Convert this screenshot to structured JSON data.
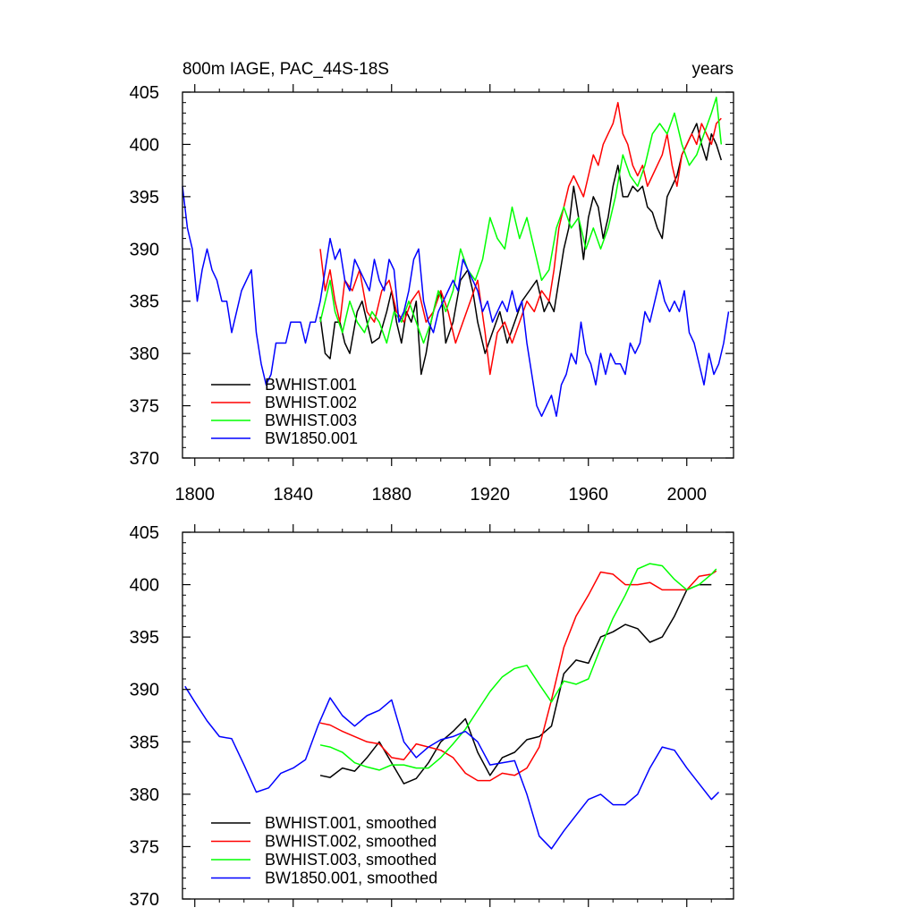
{
  "chart_data": [
    {
      "type": "line",
      "title": "800m IAGE, PAC_44S-18S",
      "units": "years",
      "xlim": [
        1795,
        2019
      ],
      "ylim": [
        370,
        405
      ],
      "xticks": [
        1800,
        1840,
        1880,
        1920,
        1960,
        2000
      ],
      "yticks": [
        370,
        375,
        380,
        385,
        390,
        395,
        400,
        405
      ],
      "x_tick_labels": [
        "1800",
        "1840",
        "1880",
        "1920",
        "1960",
        "2000"
      ],
      "y_tick_labels": [
        "370",
        "375",
        "380",
        "385",
        "390",
        "395",
        "400",
        "405"
      ],
      "legend": [
        "BWHIST.001",
        "BWHIST.002",
        "BWHIST.003",
        "BW1850.001"
      ],
      "series": [
        {
          "name": "BWHIST.001",
          "color": "#000000",
          "x": [
            1851,
            1853,
            1855,
            1857,
            1859,
            1861,
            1863,
            1866,
            1868,
            1870,
            1872,
            1875,
            1878,
            1880,
            1882,
            1884,
            1886,
            1888,
            1890,
            1892,
            1894,
            1896,
            1898,
            1900,
            1902,
            1905,
            1908,
            1911,
            1913,
            1915,
            1918,
            1921,
            1924,
            1927,
            1930,
            1933,
            1936,
            1939,
            1942,
            1944,
            1946,
            1948,
            1950,
            1952,
            1954,
            1956,
            1958,
            1960,
            1962,
            1964,
            1966,
            1968,
            1970,
            1972,
            1974,
            1976,
            1978,
            1980,
            1982,
            1984,
            1986,
            1988,
            1990,
            1992,
            1994,
            1996,
            1998,
            2000,
            2002,
            2004,
            2006,
            2008,
            2010,
            2012,
            2014
          ],
          "values": [
            383.5,
            380,
            379.5,
            383,
            383,
            381,
            380,
            384,
            385,
            383,
            381,
            381.5,
            384,
            386,
            383,
            381,
            384,
            383,
            385,
            378,
            380,
            383,
            385,
            386,
            381,
            383,
            387,
            388,
            386,
            383,
            380,
            382,
            384,
            381,
            383,
            385,
            386,
            387,
            384,
            385,
            384,
            387,
            390,
            392,
            396,
            393,
            389,
            393,
            395,
            394,
            391,
            393,
            396,
            398,
            395,
            395,
            396,
            395.5,
            396,
            394,
            393.5,
            392,
            391,
            395,
            396,
            397,
            399,
            400,
            401,
            402,
            400,
            398.5,
            401,
            400,
            398.5
          ]
        },
        {
          "name": "BWHIST.002",
          "color": "#ff0000",
          "x": [
            1851,
            1853,
            1855,
            1857,
            1859,
            1861,
            1864,
            1867,
            1870,
            1873,
            1876,
            1879,
            1882,
            1885,
            1888,
            1891,
            1894,
            1897,
            1900,
            1903,
            1906,
            1909,
            1912,
            1915,
            1918,
            1920,
            1923,
            1926,
            1929,
            1932,
            1935,
            1938,
            1941,
            1944,
            1946,
            1948,
            1950,
            1952,
            1954,
            1956,
            1958,
            1960,
            1962,
            1964,
            1966,
            1968,
            1970,
            1972,
            1974,
            1976,
            1978,
            1980,
            1982,
            1984,
            1986,
            1988,
            1990,
            1992,
            1994,
            1996,
            1998,
            2000,
            2002,
            2004,
            2006,
            2008,
            2010,
            2012,
            2014
          ],
          "values": [
            390,
            386,
            388,
            385,
            383,
            387,
            386,
            388,
            384,
            383,
            386,
            387,
            384,
            383,
            385,
            386,
            383,
            384,
            386,
            384,
            381,
            383,
            385,
            387,
            382,
            378,
            382,
            383,
            381,
            383,
            385,
            384,
            386,
            385,
            388,
            392,
            394,
            396,
            397,
            396,
            395,
            397,
            399,
            398,
            400,
            401,
            402,
            404,
            401,
            400,
            398,
            397,
            398,
            396,
            397,
            398,
            399,
            401,
            398,
            396,
            399,
            400,
            401,
            400,
            402,
            401,
            400,
            402,
            402.5
          ]
        },
        {
          "name": "BWHIST.003",
          "color": "#00ff00",
          "x": [
            1851,
            1853,
            1855,
            1857,
            1860,
            1863,
            1866,
            1869,
            1872,
            1875,
            1878,
            1881,
            1884,
            1887,
            1890,
            1893,
            1896,
            1899,
            1902,
            1905,
            1908,
            1911,
            1914,
            1917,
            1920,
            1923,
            1926,
            1929,
            1932,
            1935,
            1938,
            1941,
            1944,
            1947,
            1950,
            1953,
            1956,
            1959,
            1962,
            1965,
            1968,
            1971,
            1974,
            1977,
            1980,
            1983,
            1986,
            1989,
            1992,
            1995,
            1998,
            2001,
            2004,
            2007,
            2010,
            2012,
            2014
          ],
          "values": [
            383,
            385,
            387,
            384,
            382,
            385,
            383,
            382,
            384,
            383,
            381,
            384,
            383,
            385,
            383,
            381,
            383,
            386,
            384,
            386,
            390,
            388,
            387,
            389,
            393,
            391,
            390,
            394,
            391,
            393,
            390,
            387,
            388,
            392,
            394,
            392,
            393,
            390,
            392,
            390,
            392,
            395,
            399,
            397,
            396,
            398,
            401,
            402,
            401,
            403,
            400,
            398,
            399,
            401,
            403,
            404.5,
            400
          ]
        },
        {
          "name": "BW1850.001",
          "color": "#0000ff",
          "x": [
            1795,
            1797,
            1799,
            1801,
            1803,
            1805,
            1807,
            1809,
            1811,
            1813,
            1815,
            1817,
            1819,
            1821,
            1823,
            1825,
            1827,
            1829,
            1831,
            1833,
            1835,
            1837,
            1839,
            1841,
            1843,
            1845,
            1847,
            1849,
            1851,
            1853,
            1855,
            1857,
            1859,
            1861,
            1863,
            1865,
            1867,
            1869,
            1871,
            1873,
            1875,
            1877,
            1879,
            1881,
            1883,
            1885,
            1887,
            1889,
            1891,
            1893,
            1895,
            1897,
            1899,
            1901,
            1903,
            1905,
            1907,
            1909,
            1911,
            1913,
            1915,
            1917,
            1919,
            1921,
            1923,
            1925,
            1927,
            1929,
            1931,
            1933,
            1935,
            1937,
            1939,
            1941,
            1943,
            1945,
            1947,
            1949,
            1951,
            1953,
            1955,
            1957,
            1959,
            1961,
            1963,
            1965,
            1967,
            1969,
            1971,
            1973,
            1975,
            1977,
            1979,
            1981,
            1983,
            1985,
            1987,
            1989,
            1991,
            1993,
            1995,
            1997,
            1999,
            2001,
            2003,
            2005,
            2007,
            2009,
            2011,
            2013,
            2015,
            2017
          ],
          "values": [
            396,
            392,
            390,
            385,
            388,
            390,
            388,
            387,
            385,
            385,
            382,
            384,
            386,
            387,
            388,
            382,
            379,
            377,
            378,
            381,
            381,
            381,
            383,
            383,
            383,
            381,
            383,
            383,
            385,
            388,
            391,
            389,
            390,
            387,
            386,
            389,
            388,
            387,
            386,
            389,
            387,
            386,
            389,
            388,
            383,
            384,
            386,
            389,
            390,
            385,
            383,
            382,
            384,
            385,
            386,
            387,
            386,
            389,
            388,
            387,
            386,
            384,
            385,
            383,
            384,
            385,
            384,
            386,
            384,
            385,
            381,
            378,
            375,
            374,
            375,
            376,
            374,
            377,
            378,
            380,
            379,
            383,
            380,
            379,
            377,
            380,
            378,
            380,
            379,
            379,
            378,
            381,
            380,
            381,
            384,
            383,
            385,
            387,
            385,
            384,
            385,
            384,
            386,
            382,
            381,
            379,
            377,
            380,
            378,
            379,
            381,
            384
          ]
        }
      ]
    },
    {
      "type": "line",
      "xlim": [
        1795,
        2019
      ],
      "ylim": [
        370,
        405
      ],
      "xticks": [
        1800,
        1840,
        1880,
        1920,
        1960,
        2000
      ],
      "yticks": [
        370,
        375,
        380,
        385,
        390,
        395,
        400,
        405
      ],
      "y_tick_labels": [
        "370",
        "375",
        "380",
        "385",
        "390",
        "395",
        "400",
        "405"
      ],
      "legend": [
        "BWHIST.001, smoothed",
        "BWHIST.002, smoothed",
        "BWHIST.003, smoothed",
        "BW1850.001, smoothed"
      ],
      "series": [
        {
          "name": "BWHIST.001, smoothed",
          "color": "#000000",
          "x": [
            1851,
            1855,
            1860,
            1865,
            1870,
            1875,
            1880,
            1885,
            1890,
            1895,
            1900,
            1905,
            1910,
            1915,
            1920,
            1925,
            1930,
            1935,
            1940,
            1945,
            1950,
            1955,
            1960,
            1965,
            1970,
            1975,
            1980,
            1985,
            1990,
            1995,
            2000,
            2005,
            2010
          ],
          "values": [
            381.8,
            381.6,
            382.5,
            382.2,
            383.5,
            385,
            383,
            381,
            381.5,
            383,
            385,
            386,
            387.2,
            384,
            381.8,
            383.5,
            384,
            385.2,
            385.5,
            386.5,
            391.5,
            392.8,
            392.5,
            395,
            395.5,
            396.2,
            395.8,
            394.5,
            395,
            397,
            399.5,
            400,
            400
          ]
        },
        {
          "name": "BWHIST.002, smoothed",
          "color": "#ff0000",
          "x": [
            1851,
            1855,
            1860,
            1865,
            1870,
            1875,
            1880,
            1885,
            1890,
            1895,
            1900,
            1905,
            1910,
            1915,
            1920,
            1925,
            1930,
            1935,
            1940,
            1945,
            1950,
            1955,
            1960,
            1965,
            1970,
            1975,
            1980,
            1985,
            1990,
            1995,
            2000,
            2005,
            2010,
            2012
          ],
          "values": [
            386.8,
            386.6,
            386,
            385.5,
            385,
            384.8,
            383.5,
            383.3,
            384.8,
            384.5,
            384.2,
            383.5,
            382,
            381.3,
            381.3,
            382,
            381.8,
            382.5,
            384.5,
            389,
            394,
            397,
            399,
            401.2,
            401,
            400,
            400,
            400.2,
            399.5,
            399.5,
            399.5,
            400.8,
            401,
            401.3
          ]
        },
        {
          "name": "BWHIST.003, smoothed",
          "color": "#00ff00",
          "x": [
            1851,
            1855,
            1860,
            1865,
            1870,
            1875,
            1880,
            1885,
            1890,
            1895,
            1900,
            1905,
            1910,
            1915,
            1920,
            1925,
            1930,
            1935,
            1940,
            1945,
            1950,
            1955,
            1960,
            1965,
            1970,
            1975,
            1980,
            1985,
            1990,
            1995,
            2000,
            2005,
            2010,
            2012
          ],
          "values": [
            384.7,
            384.5,
            384,
            383,
            382.6,
            382.3,
            382.8,
            382.8,
            382.5,
            382.5,
            383.5,
            384.8,
            386.2,
            388,
            389.8,
            391.2,
            392,
            392.3,
            390.5,
            388.8,
            390.8,
            390.5,
            391,
            394,
            396.8,
            399,
            401.5,
            402,
            401.8,
            400.5,
            399.5,
            400,
            401,
            401.5
          ]
        },
        {
          "name": "BW1850.001, smoothed",
          "color": "#0000ff",
          "x": [
            1796,
            1800,
            1805,
            1810,
            1815,
            1820,
            1825,
            1830,
            1835,
            1840,
            1845,
            1850,
            1855,
            1860,
            1865,
            1870,
            1875,
            1880,
            1885,
            1890,
            1895,
            1900,
            1905,
            1910,
            1915,
            1920,
            1925,
            1930,
            1935,
            1940,
            1945,
            1950,
            1955,
            1960,
            1965,
            1970,
            1975,
            1980,
            1985,
            1990,
            1995,
            2000,
            2005,
            2010,
            2013
          ],
          "values": [
            390.3,
            388.8,
            387,
            385.5,
            385.3,
            382.8,
            380.2,
            380.6,
            382,
            382.5,
            383.3,
            386.5,
            389.2,
            387.5,
            386.5,
            387.5,
            388,
            389,
            385,
            383.5,
            384.5,
            385.2,
            385.5,
            386,
            385,
            382.8,
            383,
            383.2,
            380,
            376,
            374.8,
            376.5,
            378,
            379.5,
            380,
            379,
            379,
            380,
            382.5,
            384.5,
            384.2,
            382.5,
            381,
            379.5,
            380.2
          ]
        }
      ]
    }
  ]
}
